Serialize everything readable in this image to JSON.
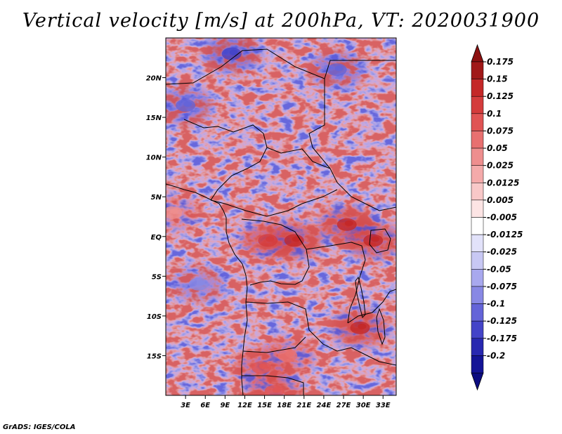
{
  "chart_data": {
    "type": "heatmap",
    "title": "Vertical velocity [m/s] at 200hPa, VT: 2020031900",
    "xlabel": "",
    "ylabel": "",
    "x_ticks": [
      "3E",
      "6E",
      "9E",
      "12E",
      "15E",
      "18E",
      "21E",
      "24E",
      "27E",
      "30E",
      "33E"
    ],
    "x_tick_values": [
      3,
      6,
      9,
      12,
      15,
      18,
      21,
      24,
      27,
      30,
      33
    ],
    "y_ticks": [
      "20N",
      "15N",
      "10N",
      "5N",
      "EQ",
      "5S",
      "10S",
      "15S"
    ],
    "y_tick_values": [
      20,
      15,
      10,
      5,
      0,
      -5,
      -10,
      -15
    ],
    "xlim": [
      0,
      35
    ],
    "ylim": [
      -20,
      25
    ],
    "colorbar": {
      "levels": [
        "0.175",
        "0.15",
        "0.125",
        "0.1",
        "0.075",
        "0.05",
        "0.025",
        "0.0125",
        "0.005",
        "-0.005",
        "-0.0125",
        "-0.025",
        "-0.05",
        "-0.075",
        "-0.1",
        "-0.125",
        "-0.175",
        "-0.2"
      ],
      "colors": [
        "#a01818",
        "#c42828",
        "#d43c3c",
        "#e05454",
        "#e87070",
        "#ee8e8e",
        "#f4aaaa",
        "#f8c8c8",
        "#fce4e4",
        "#ffffff",
        "#e2e2fa",
        "#c8c8f4",
        "#a8a8ee",
        "#8888e4",
        "#6464d8",
        "#4444c8",
        "#2828b0",
        "#141496"
      ],
      "top_color": "#8c1010",
      "bottom_color": "#0c0c80",
      "placement": "right"
    },
    "hotspots": [
      {
        "lon": 27.5,
        "lat": 1.5,
        "value": 0.15
      },
      {
        "lon": 19.5,
        "lat": -0.5,
        "value": 0.15
      },
      {
        "lon": 15.5,
        "lat": -0.5,
        "value": 0.125
      },
      {
        "lon": 31.5,
        "lat": -0.5,
        "value": 0.15
      },
      {
        "lon": 29.5,
        "lat": -11.5,
        "value": 0.15
      },
      {
        "lon": 14.5,
        "lat": -16.5,
        "value": 0.1
      },
      {
        "lon": 16.5,
        "lat": -19.5,
        "value": 0.1
      },
      {
        "lon": 18.5,
        "lat": -15.0,
        "value": 0.075
      },
      {
        "lon": 10.0,
        "lat": 23.0,
        "value": -0.125
      },
      {
        "lon": 3.0,
        "lat": 16.5,
        "value": -0.1
      },
      {
        "lon": 5.0,
        "lat": -6.0,
        "value": -0.075
      },
      {
        "lon": 26.0,
        "lat": 21.0,
        "value": -0.1
      },
      {
        "lon": 1.0,
        "lat": 3.0,
        "value": 0.05
      }
    ]
  },
  "credit": "GrADS: IGES/COLA"
}
